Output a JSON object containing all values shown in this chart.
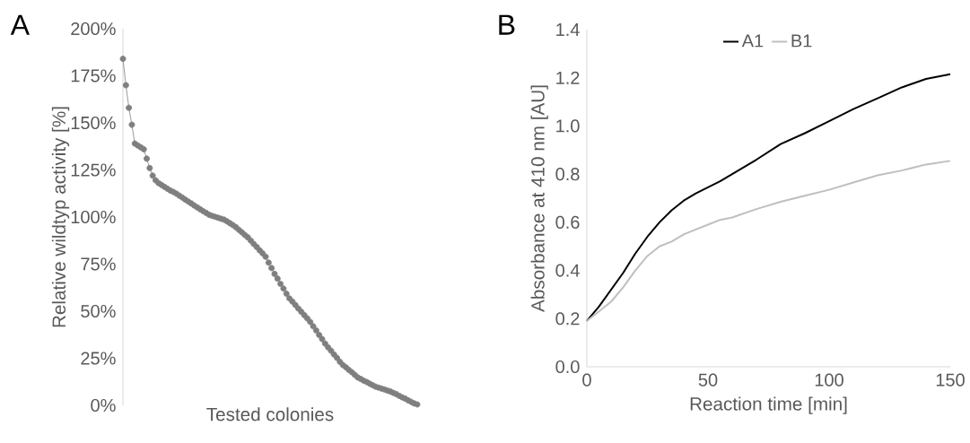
{
  "chart_data": [
    {
      "type": "line",
      "annotations": [
        "A"
      ],
      "xlabel": "Tested colonies",
      "ylabel": "Relative wildtyp activity [%]",
      "categories": [
        null,
        null,
        null,
        null,
        null,
        null,
        null,
        null,
        null,
        null,
        null,
        null,
        null,
        null,
        null,
        null,
        null,
        null,
        null,
        null,
        null,
        null,
        null,
        null,
        null,
        null,
        null,
        null,
        null,
        null,
        null,
        null,
        null,
        null,
        null,
        null,
        null,
        null,
        null,
        null,
        null,
        null,
        null,
        null,
        null,
        null,
        null,
        null,
        null,
        null,
        null,
        null,
        null,
        null,
        null,
        null,
        null,
        null,
        null,
        null,
        null,
        null,
        null,
        null,
        null,
        null,
        null,
        null,
        null,
        null,
        null,
        null,
        null,
        null,
        null,
        null,
        null,
        null,
        null,
        null,
        null,
        null,
        null,
        null,
        null,
        null,
        null,
        null,
        null,
        null,
        null,
        null,
        null,
        null,
        null,
        null,
        null,
        null,
        null,
        null
      ],
      "values": [
        184,
        170,
        158,
        149,
        139,
        138,
        137,
        136,
        131,
        126,
        122,
        119.5,
        118,
        117,
        116,
        115,
        114,
        113.3,
        112.4,
        111.3,
        110.3,
        109.2,
        108.2,
        107.2,
        106.1,
        105.1,
        104.1,
        103.1,
        102.2,
        101.2,
        100.6,
        100.1,
        99.6,
        99.1,
        98.6,
        97.7,
        96.7,
        95.7,
        94.6,
        93.2,
        91.9,
        90.5,
        89.2,
        87.5,
        85.7,
        84.1,
        82.3,
        80.7,
        78.9,
        75.8,
        72.9,
        69.8,
        67.3,
        64.5,
        62,
        59.3,
        56.8,
        55.1,
        53.3,
        51.4,
        49.7,
        47.9,
        46.2,
        44.3,
        42,
        39.8,
        37.4,
        35.2,
        32.8,
        30.8,
        29,
        27,
        25.2,
        23.1,
        21.4,
        20.2,
        18.8,
        17.6,
        16.2,
        14.8,
        14,
        13.1,
        12.4,
        11.5,
        10.7,
        9.9,
        9.4,
        8.9,
        8.4,
        7.8,
        7.3,
        6.6,
        5.9,
        5,
        4.2,
        3.5,
        2.6,
        1.8,
        1,
        0.5
      ],
      "color": "#7f7f7f",
      "marker": "circle",
      "ylim": [
        0,
        200
      ],
      "yticks": [
        {
          "value": 0,
          "label": "0%"
        },
        {
          "value": 25,
          "label": "25%"
        },
        {
          "value": 50,
          "label": "50%"
        },
        {
          "value": 75,
          "label": "75%"
        },
        {
          "value": 100,
          "label": "100%"
        },
        {
          "value": 125,
          "label": "125%"
        },
        {
          "value": 150,
          "label": "150%"
        },
        {
          "value": 175,
          "label": "175%"
        },
        {
          "value": 200,
          "label": "200%"
        }
      ],
      "tick_labels": "y"
    },
    {
      "type": "line",
      "annotations": [
        "B"
      ],
      "xlabel": "Reaction time [min]",
      "ylabel": "Absorbance at 410 nm [AU]",
      "x": [
        0,
        5,
        10,
        15,
        20,
        25,
        30,
        35,
        40,
        45,
        50,
        55,
        60,
        70,
        80,
        90,
        100,
        110,
        120,
        130,
        140,
        150
      ],
      "series": [
        {
          "name": "A1",
          "color": "#000000",
          "values": [
            0.19,
            0.25,
            0.32,
            0.39,
            0.47,
            0.54,
            0.6,
            0.65,
            0.69,
            0.72,
            0.745,
            0.77,
            0.8,
            0.86,
            0.925,
            0.97,
            1.02,
            1.07,
            1.115,
            1.16,
            1.195,
            1.215
          ]
        },
        {
          "name": "B1",
          "color": "#bfbfbf",
          "values": [
            0.19,
            0.23,
            0.27,
            0.33,
            0.4,
            0.46,
            0.5,
            0.52,
            0.55,
            0.57,
            0.59,
            0.61,
            0.62,
            0.655,
            0.685,
            0.71,
            0.735,
            0.765,
            0.795,
            0.815,
            0.84,
            0.855
          ]
        }
      ],
      "xlim": [
        0,
        150
      ],
      "ylim": [
        0,
        1.4
      ],
      "xticks": [
        0,
        50,
        100,
        150
      ],
      "yticks": [
        {
          "value": 0,
          "label": "0.0"
        },
        {
          "value": 0.2,
          "label": "0.2"
        },
        {
          "value": 0.4,
          "label": "0.4"
        },
        {
          "value": 0.6,
          "label": "0.6"
        },
        {
          "value": 0.8,
          "label": "0.8"
        },
        {
          "value": 1.0,
          "label": "1.0"
        },
        {
          "value": 1.2,
          "label": "1.2"
        },
        {
          "value": 1.4,
          "label": "1.4"
        }
      ],
      "legend": "top"
    }
  ]
}
